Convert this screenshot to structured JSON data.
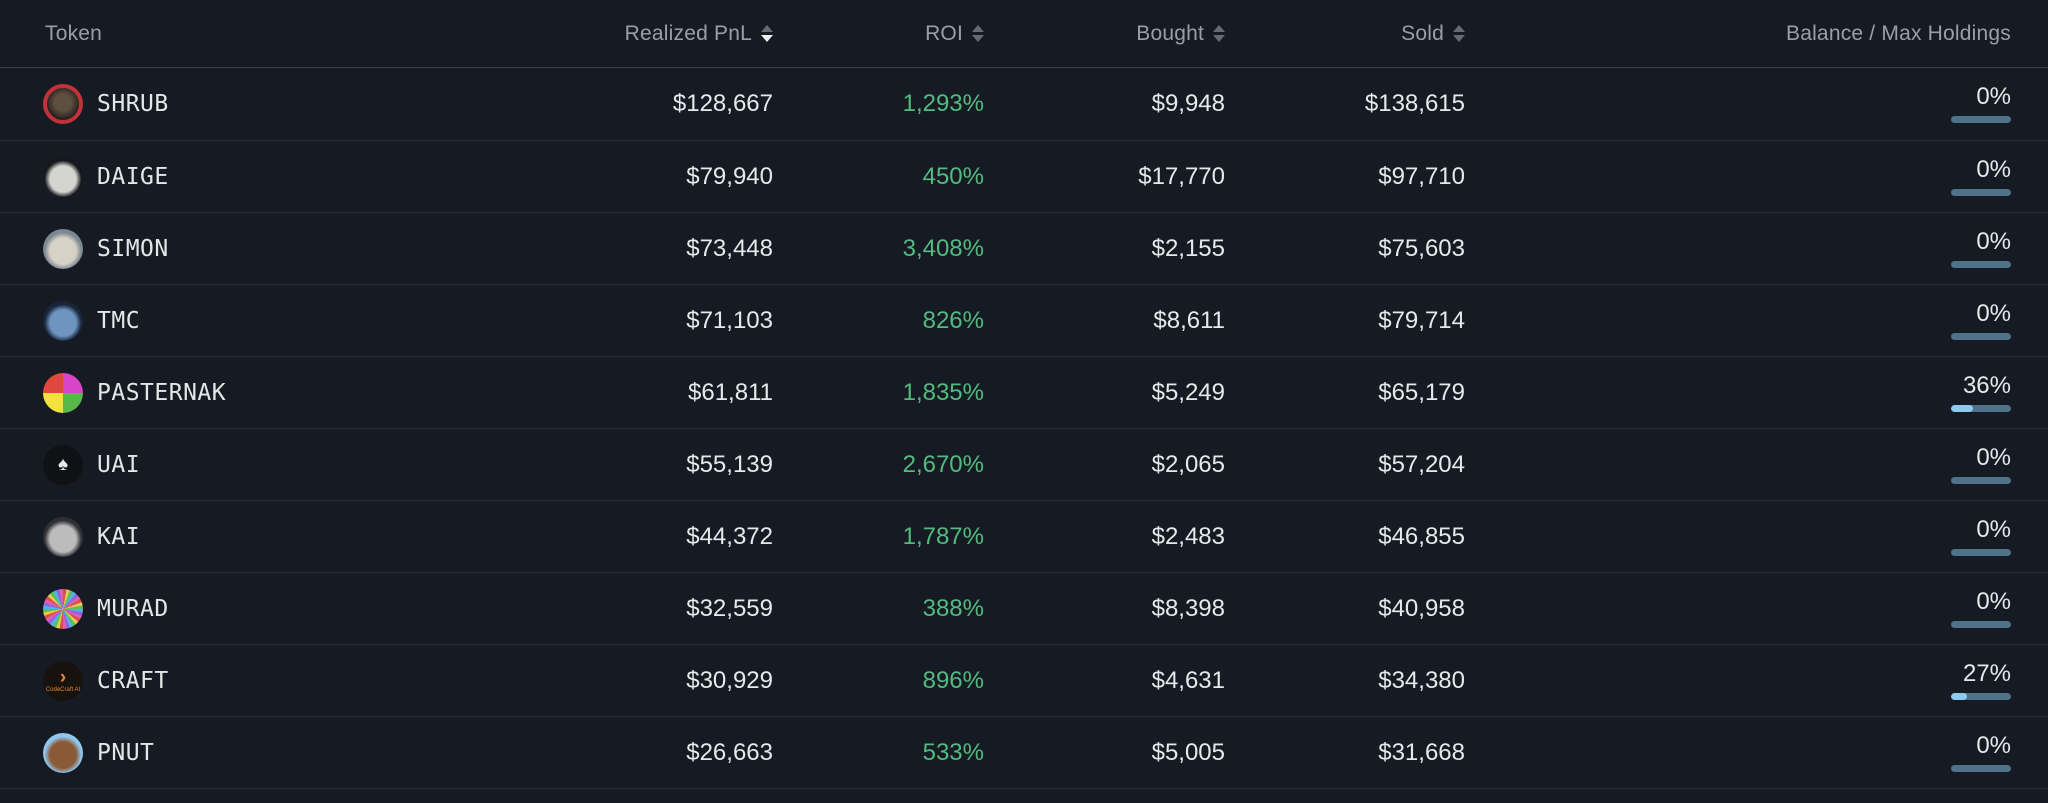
{
  "colors": {
    "background": "#161b23",
    "row_divider": "#262d37",
    "header_divider": "#3a434f",
    "header_text": "#97a0aa",
    "value_text": "#e6e9ec",
    "roi_positive": "#53ba80",
    "sort_inactive": "#626b76",
    "sort_active": "#eef1f3",
    "bar_track": "#4e7288",
    "bar_fill": "#8ccbef"
  },
  "header": {
    "columns": [
      {
        "id": "token",
        "label": "Token",
        "align": "left",
        "sortable": false,
        "sort_active": null
      },
      {
        "id": "realized-pnl",
        "label": "Realized PnL",
        "align": "right",
        "sortable": true,
        "sort_active": "desc"
      },
      {
        "id": "roi",
        "label": "ROI",
        "align": "right",
        "sortable": true,
        "sort_active": null
      },
      {
        "id": "bought",
        "label": "Bought",
        "align": "right",
        "sortable": true,
        "sort_active": null
      },
      {
        "id": "sold",
        "label": "Sold",
        "align": "right",
        "sortable": true,
        "sort_active": null
      },
      {
        "id": "balance",
        "label": "Balance / Max Holdings",
        "align": "right",
        "sortable": false,
        "sort_active": null
      }
    ]
  },
  "rows": [
    {
      "token": "SHRUB",
      "realized_pnl": "$128,667",
      "roi": "1,293%",
      "bought": "$9,948",
      "sold": "$138,615",
      "balance_percent": "0%",
      "balance_fill_pct": 0,
      "avatar": {
        "icon": "shrub-hedgehog-avatar-icon",
        "type": "ring",
        "colors": [
          "#5f4f41",
          "#26211d",
          "#c2303a"
        ]
      }
    },
    {
      "token": "DAIGE",
      "realized_pnl": "$79,940",
      "roi": "450%",
      "bought": "$17,770",
      "sold": "$97,710",
      "balance_percent": "0%",
      "balance_fill_pct": 0,
      "avatar": {
        "icon": "daige-panda-avatar-icon",
        "type": "radial",
        "colors": [
          "#d4d4d0",
          "#17181c"
        ]
      }
    },
    {
      "token": "SIMON",
      "realized_pnl": "$73,448",
      "roi": "3,408%",
      "bought": "$2,155",
      "sold": "$75,603",
      "balance_percent": "0%",
      "balance_fill_pct": 0,
      "avatar": {
        "icon": "simon-photo-avatar-icon",
        "type": "radial",
        "colors": [
          "#d8d2c6",
          "#7b8792"
        ]
      }
    },
    {
      "token": "TMC",
      "realized_pnl": "$71,103",
      "roi": "826%",
      "bought": "$8,611",
      "sold": "$79,714",
      "balance_percent": "0%",
      "balance_fill_pct": 0,
      "avatar": {
        "icon": "tmc-helmet-avatar-icon",
        "type": "radial",
        "colors": [
          "#6f94c0",
          "#18263b"
        ]
      }
    },
    {
      "token": "PASTERNAK",
      "realized_pnl": "$61,811",
      "roi": "1,835%",
      "bought": "$5,249",
      "sold": "$65,179",
      "balance_percent": "36%",
      "balance_fill_pct": 36,
      "avatar": {
        "icon": "pasternak-popart-avatar-icon",
        "type": "conic",
        "colors": [
          "#d944c9",
          "#58b94a",
          "#f1e23d",
          "#e0483c"
        ]
      }
    },
    {
      "token": "UAI",
      "realized_pnl": "$55,139",
      "roi": "2,670%",
      "bought": "$2,065",
      "sold": "$57,204",
      "balance_percent": "0%",
      "balance_fill_pct": 0,
      "avatar": {
        "icon": "uai-drop-avatar-icon",
        "type": "glyph",
        "colors": [
          "#101114",
          "#e9e9e9"
        ],
        "glyph": "♠"
      }
    },
    {
      "token": "KAI",
      "realized_pnl": "$44,372",
      "roi": "1,787%",
      "bought": "$2,483",
      "sold": "$46,855",
      "balance_percent": "0%",
      "balance_fill_pct": 0,
      "avatar": {
        "icon": "kai-portrait-avatar-icon",
        "type": "radial",
        "colors": [
          "#bcbcbc",
          "#2f3036"
        ]
      }
    },
    {
      "token": "MURAD",
      "realized_pnl": "$32,559",
      "roi": "388%",
      "bought": "$8,398",
      "sold": "$40,958",
      "balance_percent": "0%",
      "balance_fill_pct": 0,
      "avatar": {
        "icon": "murad-pinwheel-avatar-icon",
        "type": "pinwheel",
        "colors": [
          "#d94f4f",
          "#e8c94f",
          "#58c05a",
          "#4fb3e8",
          "#9a5fe0",
          "#e05fb0"
        ]
      }
    },
    {
      "token": "CRAFT",
      "realized_pnl": "$30,929",
      "roi": "896%",
      "bought": "$4,631",
      "sold": "$34,380",
      "balance_percent": "27%",
      "balance_fill_pct": 27,
      "avatar": {
        "icon": "craft-codecraft-avatar-icon",
        "type": "glyph",
        "colors": [
          "#17120e",
          "#e8872c"
        ],
        "glyph": "›",
        "text": "CodeCraft AI"
      }
    },
    {
      "token": "PNUT",
      "realized_pnl": "$26,663",
      "roi": "533%",
      "bought": "$5,005",
      "sold": "$31,668",
      "balance_percent": "0%",
      "balance_fill_pct": 0,
      "avatar": {
        "icon": "pnut-squirrel-avatar-icon",
        "type": "radial",
        "colors": [
          "#8a5a36",
          "#8fc7ee"
        ]
      }
    }
  ]
}
